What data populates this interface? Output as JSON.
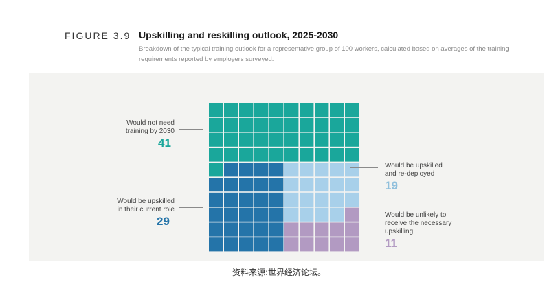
{
  "header": {
    "figure_label": "FIGURE 3.9",
    "title": "Upskilling and reskilling outlook, 2025-2030",
    "subtitle": "Breakdown of the typical training outlook for a representative group of 100 workers, calculated based on averages of the training requirements reported by employers surveyed."
  },
  "source": "资料来源:世界经济论坛。",
  "chart_data": {
    "type": "waffle",
    "title": "Upskilling and reskilling outlook, 2025-2030",
    "total": 100,
    "grid": {
      "rows": 10,
      "cols": 10
    },
    "categories": [
      {
        "label": "Would not need training by 2030",
        "value": 41,
        "color": "#1aa79b"
      },
      {
        "label": "Would be upskilled in their current role",
        "value": 29,
        "color": "#2474a9"
      },
      {
        "label": "Would be upskilled and re-deployed",
        "value": 19,
        "color": "#a8d0ea"
      },
      {
        "label": "Would be unlikely to receive the necessary upskilling",
        "value": 11,
        "color": "#b29ac2"
      }
    ],
    "labels": {
      "no_training": {
        "line1": "Would not need",
        "line2": "training by 2030",
        "value": "41"
      },
      "current_role": {
        "line1": "Would be upskilled",
        "line2": "in their current role",
        "value": "29"
      },
      "redeployed": {
        "line1": "Would be upskilled",
        "line2": "and re-deployed",
        "value": "19"
      },
      "unlikely": {
        "line1": "Would be unlikely to",
        "line2": "receive the necessary",
        "line3": "upskilling",
        "value": "11"
      }
    }
  }
}
